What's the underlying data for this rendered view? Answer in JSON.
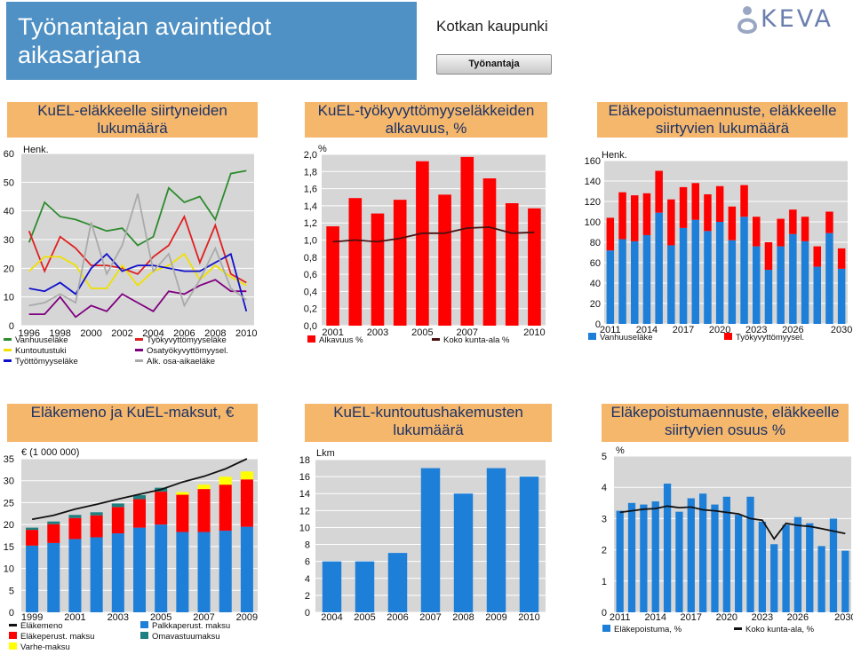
{
  "header": {
    "title": "Työnantajan avaintiedot aikasarjana",
    "organization": "Kotkan kaupunki",
    "button_label": "Työnantaja",
    "logo_text": "KEVA"
  },
  "panels": [
    {
      "title": "KuEL-eläkkeelle siirtyneiden lukumäärä"
    },
    {
      "title": "KuEL-työkyvyttömyyseläkkeiden alkavuus, %"
    },
    {
      "title": "Eläkepoistumaennuste, eläkkeelle siirtyvien lukumäärä"
    },
    {
      "title": "Eläkemeno ja KuEL-maksut, €"
    },
    {
      "title": "KuEL-kuntoutushakemusten lukumäärä"
    },
    {
      "title": "Eläkepoistumaennuste, eläkkeelle siirtyvien osuus %"
    }
  ],
  "chart_data": [
    {
      "type": "line",
      "unit_label": "Henk.",
      "x": [
        1996,
        1997,
        1998,
        1999,
        2000,
        2001,
        2002,
        2003,
        2004,
        2005,
        2006,
        2007,
        2008,
        2009,
        2010
      ],
      "x_ticks": [
        "1996",
        "1998",
        "2000",
        "2002",
        "2004",
        "2006",
        "2008",
        "2010"
      ],
      "y_ticks": [
        "0",
        "10",
        "20",
        "30",
        "40",
        "50",
        "60"
      ],
      "ylim": [
        0,
        60
      ],
      "series": [
        {
          "name": "Vanhuuseläke",
          "color": "#2e8b2e",
          "values": [
            29,
            43,
            38,
            37,
            35,
            33,
            34,
            28,
            31,
            48,
            43,
            45,
            37,
            53,
            54
          ]
        },
        {
          "name": "Työkyvyttömyyseläke",
          "color": "#e02020",
          "values": [
            33,
            19,
            31,
            27,
            21,
            21,
            20,
            18,
            24,
            28,
            38,
            22,
            35,
            18,
            15
          ]
        },
        {
          "name": "Kuntoutustuki",
          "color": "#f0e000",
          "values": [
            19,
            24,
            24,
            21,
            13,
            13,
            21,
            14,
            19,
            21,
            25,
            16,
            21,
            17,
            14
          ]
        },
        {
          "name": "Osatyökyvyttömyysel.",
          "color": "#800080",
          "values": [
            4,
            4,
            10,
            3,
            7,
            5,
            11,
            8,
            5,
            12,
            11,
            14,
            16,
            12,
            12
          ]
        },
        {
          "name": "Työttömyyseläke",
          "color": "#1010cc",
          "values": [
            13,
            12,
            15,
            11,
            20,
            25,
            19,
            21,
            21,
            20,
            19,
            19,
            22,
            25,
            5
          ]
        },
        {
          "name": "Alk. osa-aikaeläke",
          "color": "#aaaaaa",
          "values": [
            7,
            8,
            11,
            8,
            36,
            18,
            28,
            46,
            19,
            25,
            7,
            16,
            27,
            13,
            9
          ]
        }
      ]
    },
    {
      "type": "bar",
      "unit_label": "%",
      "x": [
        2001,
        2002,
        2003,
        2004,
        2005,
        2006,
        2007,
        2008,
        2009,
        2010
      ],
      "x_ticks": [
        "2001",
        "2003",
        "2005",
        "2007",
        "2010"
      ],
      "y_ticks": [
        "0,0",
        "0,2",
        "0,4",
        "0,6",
        "0,8",
        "1,0",
        "1,2",
        "1,4",
        "1,6",
        "1,8",
        "2,0"
      ],
      "ylim": [
        0,
        2.0
      ],
      "series": [
        {
          "name": "Alkavuus %",
          "color": "#ff0000",
          "type": "bar",
          "values": [
            1.16,
            1.49,
            1.31,
            1.47,
            1.92,
            1.53,
            1.97,
            1.72,
            1.43,
            1.37
          ]
        },
        {
          "name": "Koko kunta-ala %",
          "color": "#4a1010",
          "type": "line",
          "values": [
            0.98,
            1.0,
            0.98,
            1.02,
            1.08,
            1.08,
            1.14,
            1.15,
            1.08,
            1.09
          ]
        }
      ]
    },
    {
      "type": "bar",
      "unit_label": "Henk.",
      "stacked": true,
      "x": [
        2011,
        2012,
        2013,
        2014,
        2015,
        2016,
        2017,
        2018,
        2019,
        2020,
        2021,
        2022,
        2023,
        2024,
        2025,
        2026,
        2027,
        2028,
        2029,
        2030
      ],
      "x_ticks": [
        "2011",
        "2014",
        "2017",
        "2020",
        "2023",
        "2026",
        "2030"
      ],
      "y_ticks": [
        "0",
        "20",
        "40",
        "60",
        "80",
        "100",
        "120",
        "140",
        "160"
      ],
      "ylim": [
        0,
        160
      ],
      "series": [
        {
          "name": "Vanhuuseläke",
          "color": "#1e7fd8",
          "values": [
            72,
            83,
            81,
            87,
            109,
            77,
            94,
            102,
            91,
            100,
            82,
            105,
            76,
            53,
            76,
            88,
            81,
            56,
            89,
            54
          ]
        },
        {
          "name": "Työkyvyttömyysel.",
          "color": "#ff0000",
          "values": [
            32,
            46,
            45,
            41,
            41,
            45,
            40,
            36,
            36,
            35,
            33,
            31,
            29,
            27,
            27,
            24,
            24,
            20,
            21,
            20
          ]
        }
      ]
    },
    {
      "type": "bar",
      "unit_label": "€ (1 000 000)",
      "stacked": true,
      "x": [
        1999,
        2000,
        2001,
        2002,
        2003,
        2004,
        2005,
        2006,
        2007,
        2008,
        2009
      ],
      "x_ticks": [
        "1999",
        "2001",
        "2003",
        "2005",
        "2007",
        "2009"
      ],
      "y_ticks": [
        "0",
        "5",
        "10",
        "15",
        "20",
        "25",
        "30",
        "35"
      ],
      "ylim": [
        0,
        35
      ],
      "series": [
        {
          "name": "Palkkaperust. maksu",
          "color": "#1e7fd8",
          "values": [
            15.2,
            15.8,
            16.7,
            17.1,
            18.0,
            19.3,
            20.0,
            18.3,
            18.3,
            18.6,
            19.5
          ]
        },
        {
          "name": "Eläkeperust. maksu",
          "color": "#ff0000",
          "values": [
            3.6,
            4.3,
            4.8,
            5.0,
            6.0,
            6.5,
            7.5,
            8.5,
            9.8,
            10.5,
            10.8
          ]
        },
        {
          "name": "Omavastuumaksu",
          "color": "#1f8080",
          "values": [
            0.5,
            0.6,
            0.7,
            0.7,
            0.8,
            0.9,
            0.9,
            0.0,
            0.0,
            0.0,
            0.0
          ]
        },
        {
          "name": "Varhe-maksu",
          "color": "#ffff00",
          "values": [
            0,
            0,
            0,
            0,
            0,
            0,
            0,
            0.6,
            1.0,
            1.8,
            1.8
          ]
        },
        {
          "name": "Eläkemeno",
          "color": "#111111",
          "type": "line",
          "values": [
            21.2,
            22.1,
            23.5,
            24.6,
            25.8,
            26.9,
            28.0,
            29.7,
            31.0,
            32.7,
            35.0
          ]
        }
      ]
    },
    {
      "type": "bar",
      "unit_label": "Lkm",
      "x": [
        2004,
        2005,
        2006,
        2007,
        2008,
        2009,
        2010
      ],
      "x_ticks": [
        "2004",
        "2005",
        "2006",
        "2007",
        "2008",
        "2009",
        "2010"
      ],
      "y_ticks": [
        "0",
        "2",
        "4",
        "6",
        "8",
        "10",
        "12",
        "14",
        "16",
        "18"
      ],
      "ylim": [
        0,
        18
      ],
      "series": [
        {
          "color": "#1e7fd8",
          "values": [
            6,
            6,
            7,
            17,
            14,
            17,
            16
          ]
        }
      ]
    },
    {
      "type": "bar",
      "unit_label": "%",
      "x": [
        2011,
        2012,
        2013,
        2014,
        2015,
        2016,
        2017,
        2018,
        2019,
        2020,
        2021,
        2022,
        2023,
        2024,
        2025,
        2026,
        2027,
        2028,
        2029,
        2030
      ],
      "x_ticks": [
        "2011",
        "2014",
        "2017",
        "2020",
        "2023",
        "2026",
        "2030"
      ],
      "y_ticks": [
        "0",
        "1",
        "2",
        "3",
        "4",
        "5"
      ],
      "ylim": [
        0,
        5
      ],
      "series": [
        {
          "name": "Eläkepoistuma, %",
          "color": "#1e7fd8",
          "type": "bar",
          "values": [
            3.25,
            3.5,
            3.45,
            3.55,
            4.12,
            3.22,
            3.65,
            3.8,
            3.45,
            3.7,
            3.12,
            3.7,
            2.9,
            2.18,
            2.8,
            3.05,
            2.85,
            2.12,
            3.0,
            1.97
          ]
        },
        {
          "name": "Koko kunta-ala, %",
          "color": "#111111",
          "type": "line",
          "values": [
            3.2,
            3.25,
            3.3,
            3.32,
            3.4,
            3.35,
            3.37,
            3.28,
            3.25,
            3.2,
            3.15,
            3.0,
            2.95,
            2.35,
            2.85,
            2.78,
            2.75,
            2.68,
            2.6,
            2.52
          ]
        }
      ]
    }
  ]
}
